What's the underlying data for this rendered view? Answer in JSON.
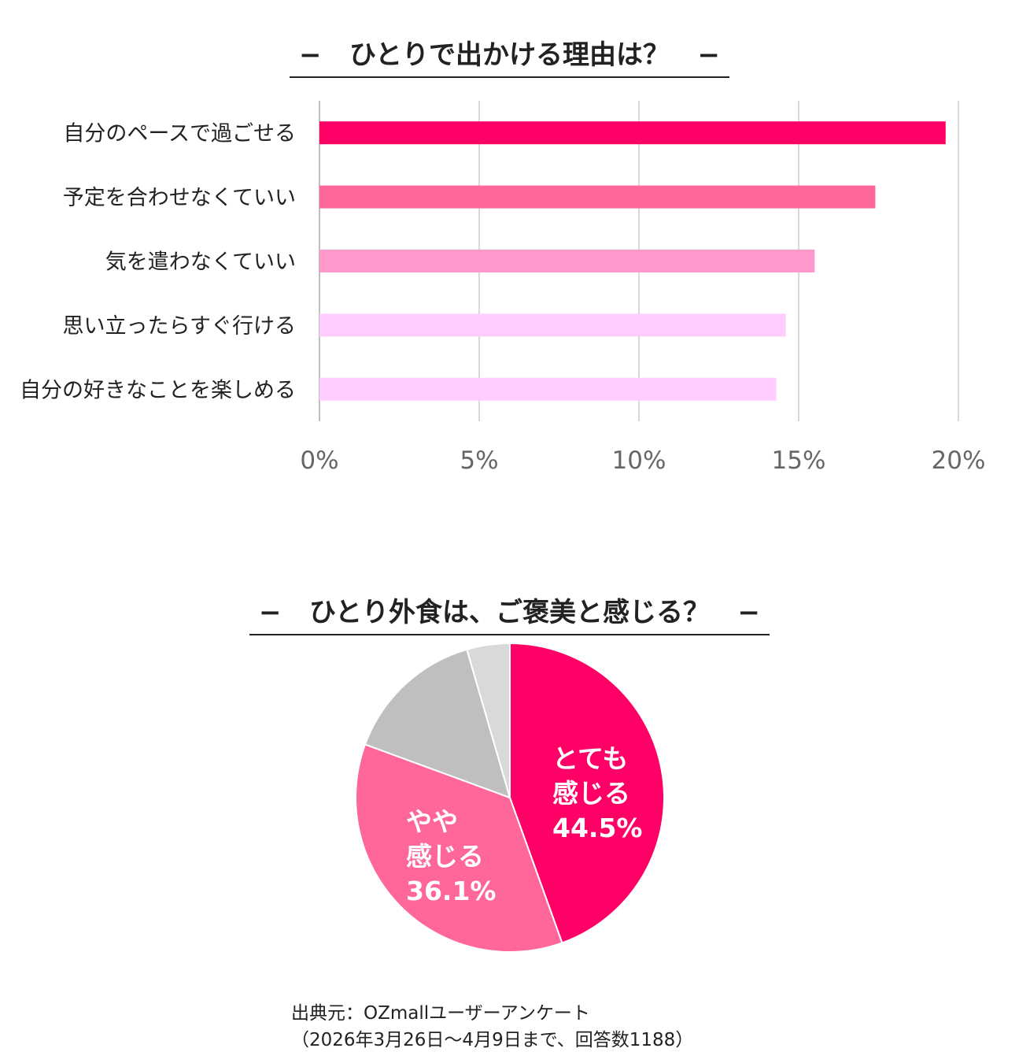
{
  "bar_chart": {
    "title_prefix": "−",
    "title": "ひとりで出かける理由は？",
    "title_suffix": "−"
  },
  "pie_chart": {
    "title_prefix": "−",
    "title": "ひとり外食は、ご褒美と感じる？",
    "title_suffix": "−"
  },
  "source": {
    "line1": "出典元：OZmallユーザーアンケート",
    "line2": "（2026年3月26日～4月9日まで、回答数1188）"
  },
  "chart_data": [
    {
      "type": "bar",
      "orientation": "horizontal",
      "title": "ひとりで出かける理由は？",
      "categories": [
        "自分のペースで過ごせる",
        "予定を合わせなくていい",
        "気を遣わなくていい",
        "思い立ったらすぐ行ける",
        "自分の好きなことを楽しめる"
      ],
      "values": [
        19.6,
        17.4,
        15.5,
        14.6,
        14.3
      ],
      "colors": [
        "#ff0066",
        "#ff6699",
        "#ff99cc",
        "#ffccff",
        "#ffccff"
      ],
      "xlim": [
        0,
        20
      ],
      "ticks": [
        0,
        5,
        10,
        15,
        20
      ],
      "tick_labels": [
        "0%",
        "5%",
        "10%",
        "15%",
        "20%"
      ],
      "grid": true
    },
    {
      "type": "pie",
      "title": "ひとり外食は、ご褒美と感じる？",
      "slices": [
        {
          "label_line1": "とても",
          "label_line2": "感じる",
          "value": 44.5,
          "value_label": "44.5%",
          "color": "#ff0066"
        },
        {
          "label_line1": "やや",
          "label_line2": "感じる",
          "value": 36.1,
          "value_label": "36.1%",
          "color": "#ff6699"
        },
        {
          "label_line1": "",
          "label_line2": "",
          "value": 14.9,
          "value_label": "",
          "color": "#bfbfbf"
        },
        {
          "label_line1": "",
          "label_line2": "",
          "value": 4.5,
          "value_label": "",
          "color": "#d9d9d9"
        }
      ]
    }
  ]
}
